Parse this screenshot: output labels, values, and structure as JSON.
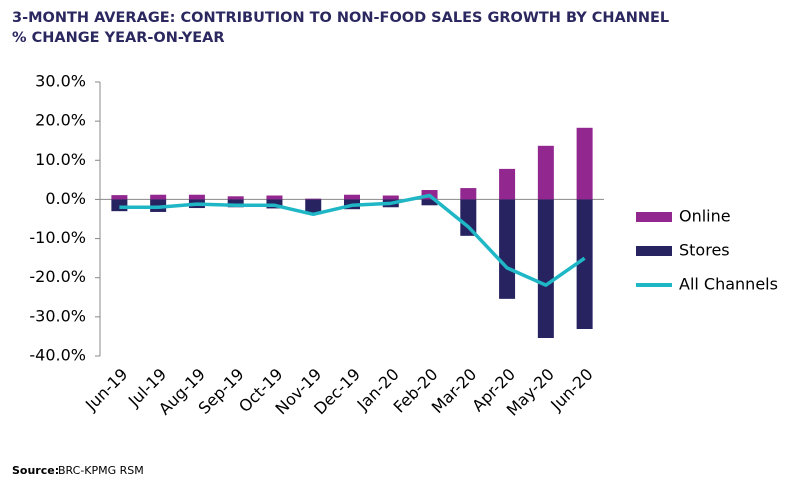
{
  "chart_data": {
    "type": "bar",
    "title": "3-MONTH AVERAGE: CONTRIBUTION TO NON-FOOD SALES GROWTH BY CHANNEL",
    "subtitle": "% CHANGE YEAR-ON-YEAR",
    "source_label": "Source:",
    "source": "BRC-KPMG RSM",
    "stacked": true,
    "categories": [
      "Jun-19",
      "Jul-19",
      "Aug-19",
      "Sep-19",
      "Oct-19",
      "Nov-19",
      "Dec-19",
      "Jan-20",
      "Feb-20",
      "Mar-20",
      "Apr-20",
      "May-20",
      "Jun-20"
    ],
    "series": [
      {
        "name": "Online",
        "color": "#92278f",
        "values": [
          1.1,
          1.2,
          1.2,
          0.8,
          1.0,
          0.2,
          1.2,
          1.0,
          2.4,
          2.9,
          7.8,
          13.7,
          18.3
        ]
      },
      {
        "name": "Stores",
        "color": "#272361",
        "values": [
          -3.0,
          -3.2,
          -2.2,
          -2.0,
          -2.3,
          -3.8,
          -2.5,
          -2.0,
          -1.5,
          -9.3,
          -25.4,
          -35.4,
          -33.1
        ]
      },
      {
        "name": "All Channels",
        "color": "#1fb7c6",
        "type": "line",
        "values": [
          -2.0,
          -2.0,
          -1.2,
          -1.5,
          -1.5,
          -3.8,
          -1.5,
          -1.0,
          1.0,
          -7.0,
          -17.5,
          -21.9,
          -15.0
        ]
      }
    ],
    "ylim": [
      -40,
      30
    ],
    "yticks": [
      {
        "value": -40,
        "label": "-40.0%"
      },
      {
        "value": -30,
        "label": "-30.0%"
      },
      {
        "value": -20,
        "label": "-20.0%"
      },
      {
        "value": -10,
        "label": "-10.0%"
      },
      {
        "value": 0,
        "label": "0.0%"
      },
      {
        "value": 10,
        "label": "10.0%"
      },
      {
        "value": 20,
        "label": "20.0%"
      },
      {
        "value": 30,
        "label": "30.0%"
      }
    ],
    "legend": "right"
  }
}
